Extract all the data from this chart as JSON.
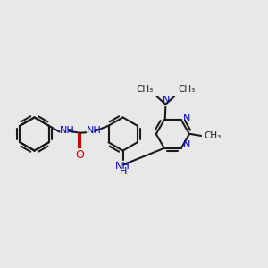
{
  "bg_color": "#e8e8e8",
  "bond_color": "#1a1a1a",
  "N_color": "#0000cc",
  "O_color": "#cc0000",
  "lw": 1.5,
  "fs": 8.0,
  "fig_w": 3.0,
  "fig_h": 3.0,
  "dpi": 100,
  "xlim": [
    0,
    12
  ],
  "ylim": [
    1,
    10
  ]
}
